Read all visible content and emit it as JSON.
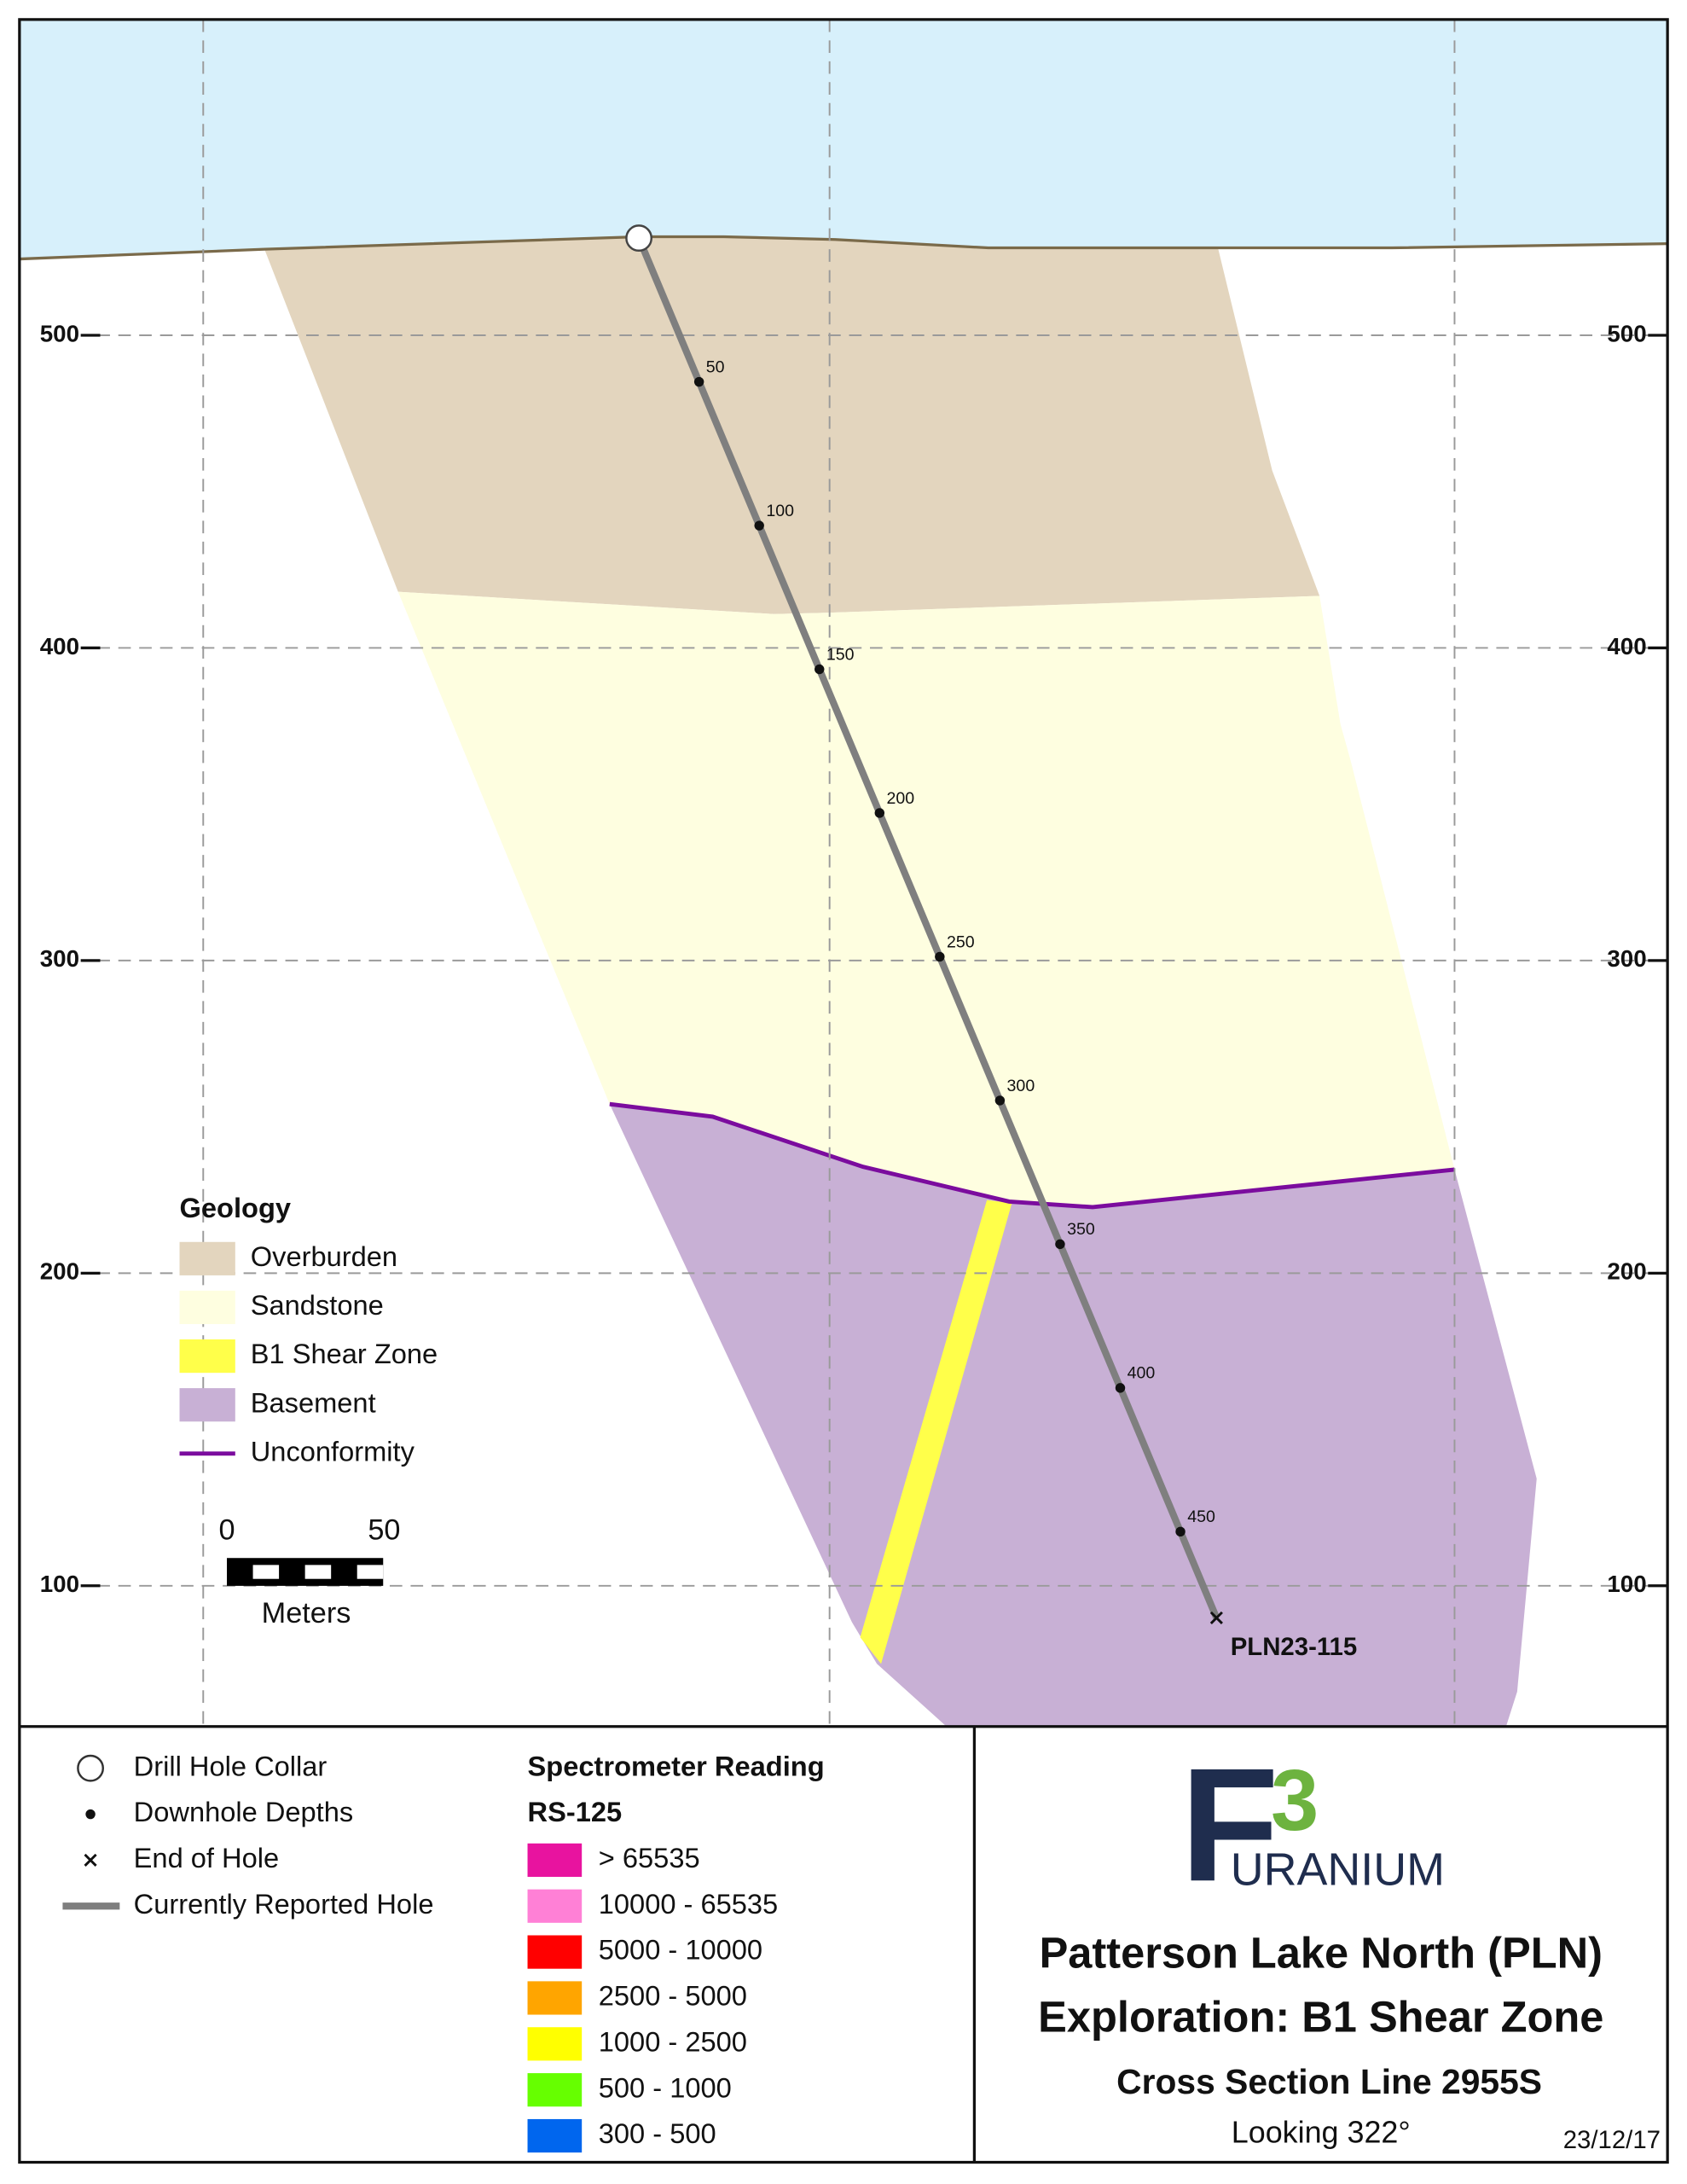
{
  "section": {
    "ylim": [
      55,
      601
    ],
    "yticks": [
      100,
      200,
      300,
      400,
      500
    ],
    "hole": {
      "name": "PLN23-115",
      "depth_labels": [
        50,
        100,
        150,
        200,
        250,
        300,
        350,
        400,
        450
      ]
    }
  },
  "geology_legend": {
    "title": "Geology",
    "items": [
      {
        "label": "Overburden",
        "color": "#e3d5be"
      },
      {
        "label": "Sandstone",
        "color": "#fefee0"
      },
      {
        "label": "B1 Shear Zone",
        "color": "#ffff4a"
      },
      {
        "label": "Basement",
        "color": "#c8b0d5"
      },
      {
        "label": "Unconformity",
        "color": "#7b0c9e"
      }
    ]
  },
  "scale_bar": {
    "start": 0,
    "end": 50,
    "unit": "Meters"
  },
  "hole_legend": [
    "Drill Hole Collar",
    "Downhole Depths",
    "End of Hole",
    "Currently Reported Hole"
  ],
  "spectrometer_legend": {
    "title": "Spectrometer Reading",
    "subtitle": "RS-125",
    "items": [
      {
        "label": "> 65535",
        "color": "#e8139f"
      },
      {
        "label": "10000 - 65535",
        "color": "#ff80d6"
      },
      {
        "label": "5000 - 10000",
        "color": "#ff0000"
      },
      {
        "label": "2500 - 5000",
        "color": "#ffa500"
      },
      {
        "label": "1000 - 2500",
        "color": "#ffff00"
      },
      {
        "label": "500 - 1000",
        "color": "#66ff00"
      },
      {
        "label": "300 - 500",
        "color": "#0066ee"
      }
    ]
  },
  "logo": {
    "letter": "F",
    "number": "3",
    "word": "URANIUM"
  },
  "title_block": {
    "lines": [
      "Patterson Lake North (PLN)",
      "Exploration: B1 Shear Zone"
    ],
    "section": "Cross Section Line 2955S",
    "view": "Looking 322°",
    "date": "23/12/17"
  }
}
